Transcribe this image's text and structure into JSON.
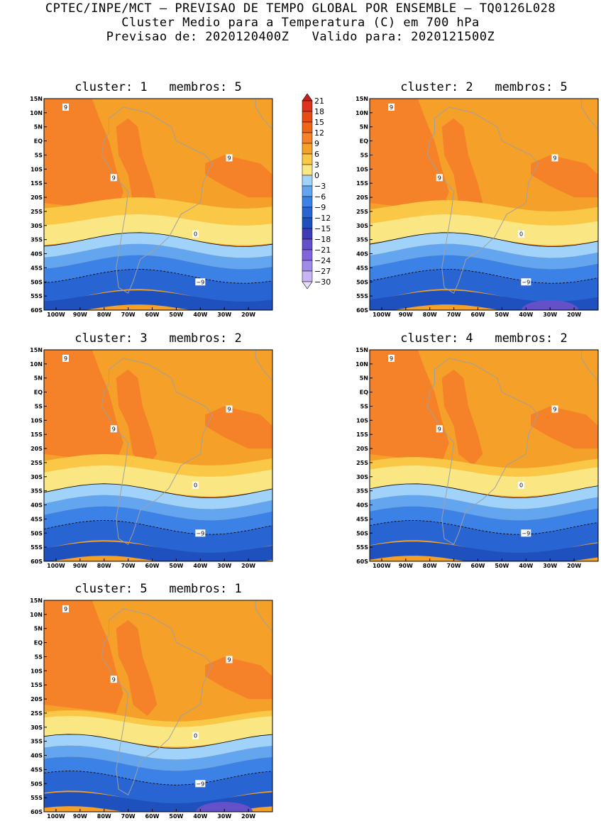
{
  "header": {
    "line1": "CPTEC/INPE/MCT — PREVISAO DE TEMPO GLOBAL POR ENSEMBLE — TQ0126L028",
    "line2": "Cluster Medio para a Temperatura (C) em 700 hPa",
    "line3": "Previsao de: 2020120400Z   Valido para: 2020121500Z"
  },
  "axes": {
    "lat_labels": [
      "15N",
      "10N",
      "5N",
      "EQ",
      "5S",
      "10S",
      "15S",
      "20S",
      "25S",
      "30S",
      "35S",
      "40S",
      "45S",
      "50S",
      "55S",
      "60S"
    ],
    "lon_labels": [
      "100W",
      "90W",
      "80W",
      "70W",
      "60W",
      "50W",
      "40W",
      "30W",
      "20W"
    ]
  },
  "colorbar": {
    "labels": [
      "21",
      "18",
      "15",
      "12",
      "9",
      "6",
      "3",
      "0",
      "−3",
      "−6",
      "−9",
      "−12",
      "−15",
      "−18",
      "−21",
      "−24",
      "−27",
      "−30"
    ],
    "colors": [
      "#c81e1e",
      "#dc321e",
      "#e64b14",
      "#f06414",
      "#f58228",
      "#f5a028",
      "#fac846",
      "#fae682",
      "#a0d2fa",
      "#64a5f0",
      "#3c82e6",
      "#2864d2",
      "#1e50be",
      "#3c3cb4",
      "#6450c8",
      "#8264dc",
      "#a08ce6",
      "#c8b4f0",
      "#e6dcfa"
    ]
  },
  "panels": [
    {
      "title": "cluster: 1   membros: 5",
      "labels": {
        "nine": "9",
        "zero": "0",
        "neg": "−9"
      }
    },
    {
      "title": "cluster: 2   membros: 5",
      "labels": {
        "nine": "9",
        "zero": "0",
        "neg": "−9"
      }
    },
    {
      "title": "cluster: 3   membros: 2",
      "labels": {
        "nine": "9",
        "zero": "0",
        "neg": "−9"
      }
    },
    {
      "title": "cluster: 4   membros: 2",
      "labels": {
        "nine": "9",
        "zero": "0",
        "neg": "−9"
      }
    },
    {
      "title": "cluster: 5   membros: 1",
      "labels": {
        "nine": "9",
        "zero": "0",
        "neg": "−9"
      }
    }
  ]
}
